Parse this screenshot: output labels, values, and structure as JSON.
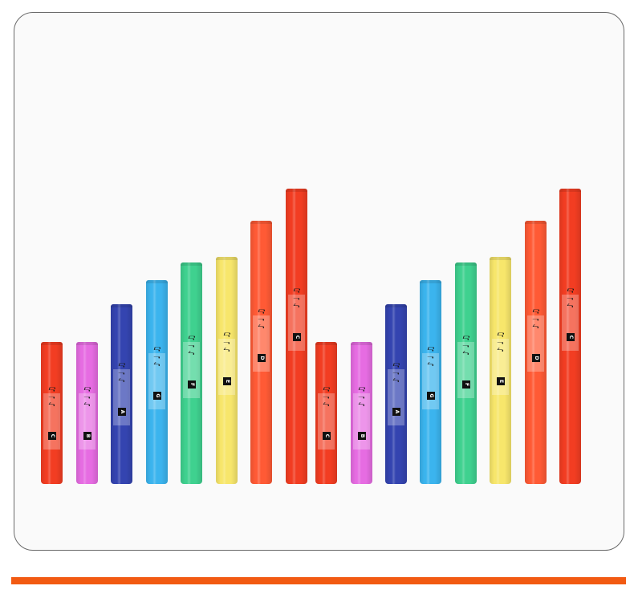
{
  "tubes": [
    {
      "label": "C",
      "color": "#f23d22",
      "level": 0.48
    },
    {
      "label": "B",
      "color": "#e66ce2",
      "level": 0.48
    },
    {
      "label": "A",
      "color": "#3444b0",
      "level": 0.61
    },
    {
      "label": "G",
      "color": "#3bb4ee",
      "level": 0.69
    },
    {
      "label": "F",
      "color": "#3fd18f",
      "level": 0.75
    },
    {
      "label": "E",
      "color": "#f7e66b",
      "level": 0.77
    },
    {
      "label": "D",
      "color": "#ff5a35",
      "level": 0.89
    },
    {
      "label": "C",
      "color": "#f23d22",
      "level": 1.0
    },
    {
      "label": "C",
      "color": "#f23d22",
      "level": 0.48
    },
    {
      "label": "B",
      "color": "#e66ce2",
      "level": 0.48
    },
    {
      "label": "A",
      "color": "#3444b0",
      "level": 0.61
    },
    {
      "label": "G",
      "color": "#3bb4ee",
      "level": 0.69
    },
    {
      "label": "F",
      "color": "#3fd18f",
      "level": 0.75
    },
    {
      "label": "E",
      "color": "#f7e66b",
      "level": 0.77
    },
    {
      "label": "D",
      "color": "#ff5a35",
      "level": 0.89
    },
    {
      "label": "C",
      "color": "#f23d22",
      "level": 1.0
    }
  ],
  "accent_color": "#f25a12"
}
